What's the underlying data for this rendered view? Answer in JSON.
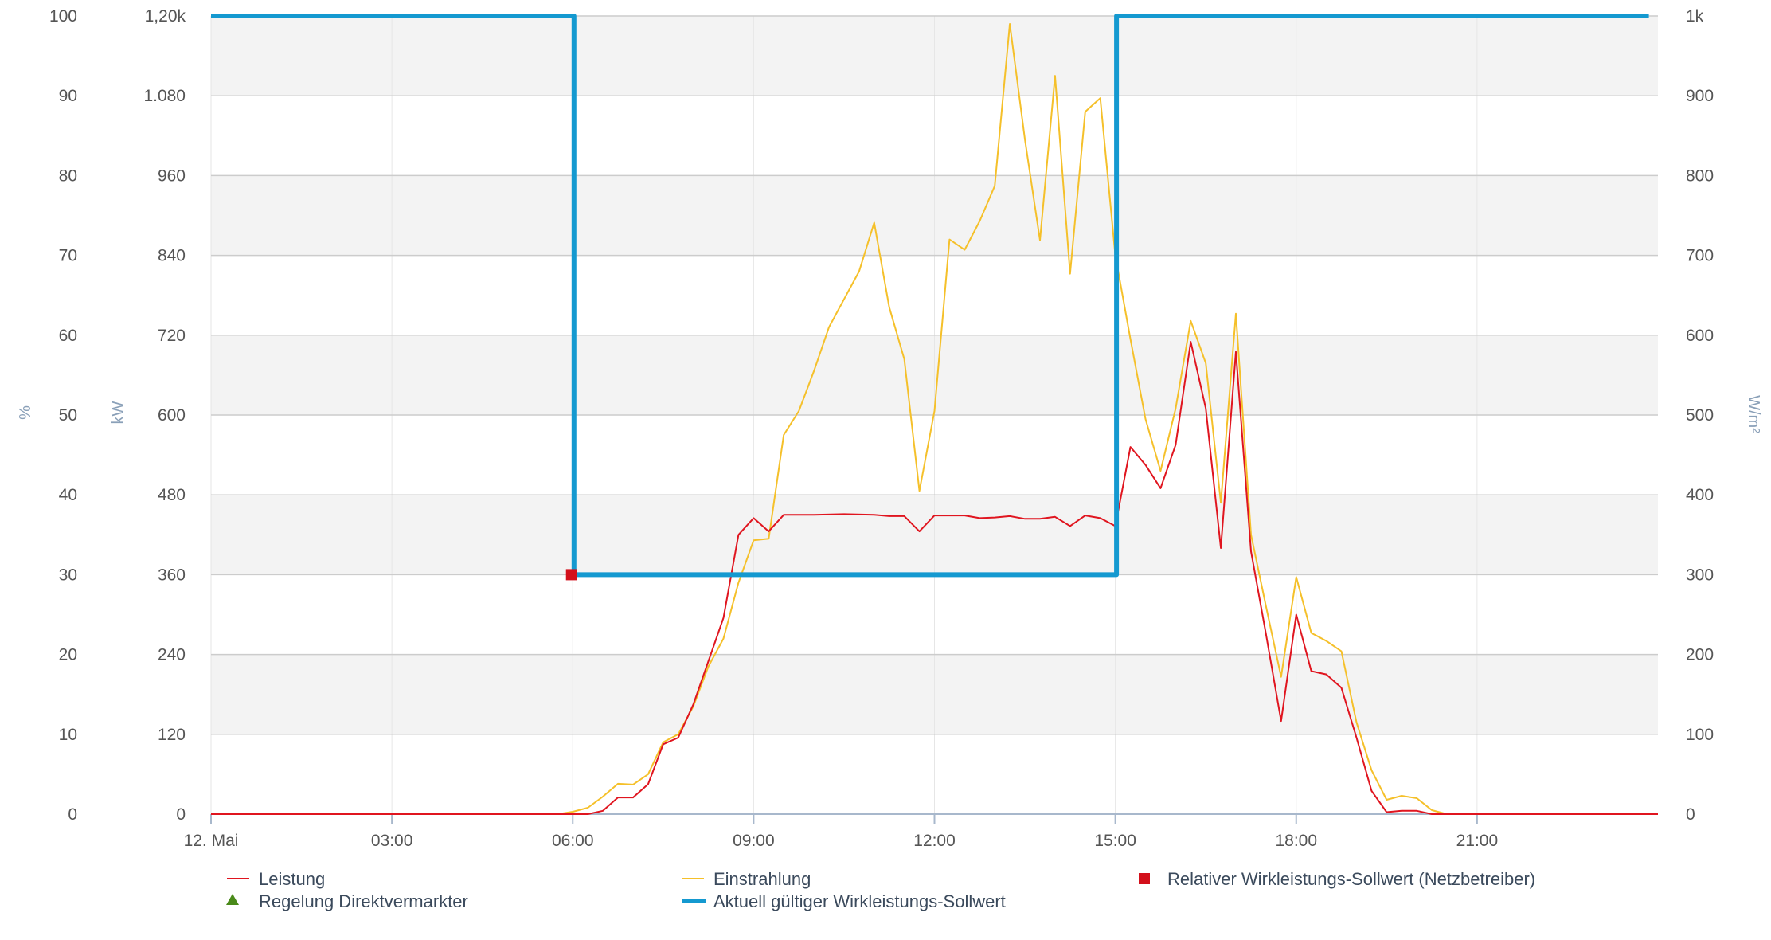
{
  "chart_data": {
    "type": "line",
    "title": "",
    "x_ticks": [
      "12. Mai",
      "03:00",
      "06:00",
      "09:00",
      "12:00",
      "15:00",
      "18:00",
      "21:00"
    ],
    "x_range_hours": [
      0,
      24
    ],
    "y_axis_percent": {
      "title": "%",
      "ticks": [
        "100",
        "90",
        "80",
        "70",
        "60",
        "50",
        "40",
        "30",
        "20",
        "10",
        "0"
      ],
      "range": [
        0,
        100
      ]
    },
    "y_axis_kw": {
      "title": "kW",
      "ticks": [
        "1,20k",
        "1.080",
        "960",
        "840",
        "720",
        "600",
        "480",
        "360",
        "240",
        "120",
        "0"
      ],
      "range": [
        0,
        1200
      ]
    },
    "y_axis_irradiance": {
      "title": "W/m²",
      "ticks": [
        "1k",
        "900",
        "800",
        "700",
        "600",
        "500",
        "400",
        "300",
        "200",
        "100",
        "0"
      ],
      "range": [
        0,
        1000
      ]
    },
    "grid": true,
    "legend_position": "bottom",
    "legend": {
      "leistung": "Leistung",
      "einstrahlung": "Einstrahlung",
      "relativer": "Relativer Wirkleistungs-Sollwert (Netzbetreiber)",
      "regelung": "Regelung Direktvermarkter",
      "aktuell": "Aktuell gültiger Wirkleistungs-Sollwert"
    },
    "series": [
      {
        "name": "Leistung",
        "unit": "kW",
        "color": "#e0151f",
        "points": [
          [
            0,
            0
          ],
          [
            6,
            0
          ],
          [
            6.25,
            0
          ],
          [
            6.5,
            5
          ],
          [
            6.75,
            25
          ],
          [
            7,
            25
          ],
          [
            7.25,
            45
          ],
          [
            7.5,
            105
          ],
          [
            7.75,
            115
          ],
          [
            8,
            165
          ],
          [
            8.25,
            230
          ],
          [
            8.5,
            295
          ],
          [
            8.75,
            420
          ],
          [
            9,
            445
          ],
          [
            9.25,
            425
          ],
          [
            9.5,
            450
          ],
          [
            10,
            450
          ],
          [
            10.5,
            451
          ],
          [
            11,
            450
          ],
          [
            11.25,
            448
          ],
          [
            11.5,
            448
          ],
          [
            11.75,
            425
          ],
          [
            12,
            449
          ],
          [
            12.5,
            449
          ],
          [
            12.75,
            445
          ],
          [
            13,
            446
          ],
          [
            13.25,
            448
          ],
          [
            13.5,
            444
          ],
          [
            13.75,
            444
          ],
          [
            14,
            447
          ],
          [
            14.25,
            433
          ],
          [
            14.5,
            449
          ],
          [
            14.75,
            445
          ],
          [
            15,
            433
          ],
          [
            15.25,
            552
          ],
          [
            15.5,
            525
          ],
          [
            15.75,
            490
          ],
          [
            16,
            555
          ],
          [
            16.25,
            710
          ],
          [
            16.5,
            610
          ],
          [
            16.75,
            400
          ],
          [
            17,
            695
          ],
          [
            17.25,
            395
          ],
          [
            17.5,
            270
          ],
          [
            17.75,
            140
          ],
          [
            18,
            300
          ],
          [
            18.25,
            215
          ],
          [
            18.5,
            210
          ],
          [
            18.75,
            190
          ],
          [
            19,
            115
          ],
          [
            19.25,
            35
          ],
          [
            19.5,
            3
          ],
          [
            19.75,
            5
          ],
          [
            20,
            5
          ],
          [
            20.25,
            0
          ],
          [
            24,
            0
          ]
        ]
      },
      {
        "name": "Einstrahlung",
        "unit": "W/m²",
        "color": "#f5c02a",
        "points": [
          [
            0,
            0
          ],
          [
            5.75,
            0
          ],
          [
            6,
            3
          ],
          [
            6.25,
            8
          ],
          [
            6.5,
            22
          ],
          [
            6.75,
            38
          ],
          [
            7,
            37
          ],
          [
            7.25,
            50
          ],
          [
            7.5,
            90
          ],
          [
            7.75,
            100
          ],
          [
            8,
            135
          ],
          [
            8.25,
            185
          ],
          [
            8.5,
            220
          ],
          [
            8.75,
            290
          ],
          [
            9,
            343
          ],
          [
            9.25,
            345
          ],
          [
            9.5,
            475
          ],
          [
            9.75,
            505
          ],
          [
            10,
            555
          ],
          [
            10.25,
            610
          ],
          [
            10.5,
            645
          ],
          [
            10.75,
            680
          ],
          [
            11,
            741
          ],
          [
            11.25,
            635
          ],
          [
            11.5,
            570
          ],
          [
            11.75,
            405
          ],
          [
            12,
            505
          ],
          [
            12.25,
            720
          ],
          [
            12.5,
            707
          ],
          [
            12.75,
            743
          ],
          [
            13,
            787
          ],
          [
            13.25,
            990
          ],
          [
            13.5,
            845
          ],
          [
            13.75,
            719
          ],
          [
            14,
            925
          ],
          [
            14.25,
            677
          ],
          [
            14.5,
            880
          ],
          [
            14.75,
            897
          ],
          [
            15,
            700
          ],
          [
            15.25,
            595
          ],
          [
            15.5,
            495
          ],
          [
            15.75,
            430
          ],
          [
            16,
            508
          ],
          [
            16.25,
            618
          ],
          [
            16.5,
            565
          ],
          [
            16.75,
            390
          ],
          [
            17,
            627
          ],
          [
            17.25,
            350
          ],
          [
            17.5,
            260
          ],
          [
            17.75,
            172
          ],
          [
            18,
            297
          ],
          [
            18.25,
            227
          ],
          [
            18.5,
            217
          ],
          [
            18.75,
            204
          ],
          [
            19,
            115
          ],
          [
            19.25,
            55
          ],
          [
            19.5,
            18
          ],
          [
            19.75,
            23
          ],
          [
            20,
            20
          ],
          [
            20.25,
            5
          ],
          [
            20.5,
            0
          ],
          [
            24,
            0
          ]
        ]
      },
      {
        "name": "Aktuell gültiger Wirkleistungs-Sollwert",
        "unit": "%",
        "color": "#1499d0",
        "points": [
          [
            0,
            100
          ],
          [
            6.02,
            100
          ],
          [
            6.02,
            30
          ],
          [
            15.02,
            30
          ],
          [
            15.02,
            100
          ],
          [
            23.85,
            100
          ]
        ]
      },
      {
        "name": "Relativer Wirkleistungs-Sollwert (Netzbetreiber)",
        "unit": "%",
        "color": "#d3101b",
        "points": [
          [
            5.98,
            30
          ]
        ]
      },
      {
        "name": "Regelung Direktvermarkter",
        "unit": "",
        "color": "#4a8a1a",
        "points": []
      }
    ]
  }
}
